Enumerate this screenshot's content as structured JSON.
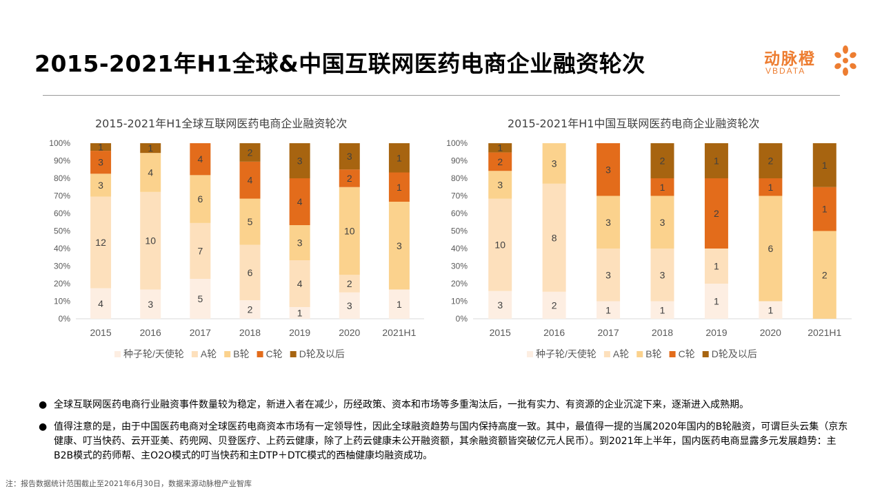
{
  "header": {
    "title": "2015-2021年H1全球&中国互联网医药电商企业融资轮次",
    "logo_cn": "动脉橙",
    "logo_en": "VBDATA"
  },
  "colors": {
    "seed": "#fdeee2",
    "a": "#fde0bc",
    "b": "#fbd28d",
    "c": "#e36c1b",
    "d": "#a76410",
    "accent": "#ed7d31"
  },
  "chart_data": [
    {
      "type": "bar",
      "stacked": "percent",
      "title": "2015-2021年H1全球互联网医药电商企业融资轮次",
      "categories": [
        "2015",
        "2016",
        "2017",
        "2018",
        "2019",
        "2020",
        "2021H1"
      ],
      "yticks": [
        "0%",
        "10%",
        "20%",
        "30%",
        "40%",
        "50%",
        "60%",
        "70%",
        "80%",
        "90%",
        "100%"
      ],
      "ylim": [
        0,
        100
      ],
      "legend_position": "bottom",
      "series": [
        {
          "name": "种子轮/天使轮",
          "color_key": "seed",
          "values": [
            4,
            3,
            5,
            2,
            1,
            3,
            1
          ]
        },
        {
          "name": "A轮",
          "color_key": "a",
          "values": [
            12,
            10,
            7,
            6,
            4,
            2,
            0
          ]
        },
        {
          "name": "B轮",
          "color_key": "b",
          "values": [
            3,
            4,
            6,
            5,
            3,
            10,
            3
          ]
        },
        {
          "name": "C轮",
          "color_key": "c",
          "values": [
            3,
            0,
            4,
            4,
            4,
            2,
            1
          ]
        },
        {
          "name": "D轮及以后",
          "color_key": "d",
          "values": [
            1,
            1,
            0,
            2,
            3,
            3,
            1
          ]
        }
      ]
    },
    {
      "type": "bar",
      "stacked": "percent",
      "title": "2015-2021年H1中国互联网医药电商企业融资轮次",
      "categories": [
        "2015",
        "2016",
        "2017",
        "2018",
        "2019",
        "2020",
        "2021H1"
      ],
      "yticks": [
        "0%",
        "10%",
        "20%",
        "30%",
        "40%",
        "50%",
        "60%",
        "70%",
        "80%",
        "90%",
        "100%"
      ],
      "ylim": [
        0,
        100
      ],
      "legend_position": "bottom",
      "series": [
        {
          "name": "种子轮/天使轮",
          "color_key": "seed",
          "values": [
            3,
            2,
            1,
            1,
            1,
            1,
            0
          ]
        },
        {
          "name": "A轮",
          "color_key": "a",
          "values": [
            10,
            8,
            3,
            3,
            1,
            0,
            0
          ]
        },
        {
          "name": "B轮",
          "color_key": "b",
          "values": [
            3,
            3,
            3,
            3,
            0,
            6,
            2
          ]
        },
        {
          "name": "C轮",
          "color_key": "c",
          "values": [
            2,
            0,
            3,
            1,
            2,
            1,
            1
          ]
        },
        {
          "name": "D轮及以后",
          "color_key": "d",
          "values": [
            1,
            0,
            0,
            2,
            1,
            2,
            1
          ]
        }
      ]
    }
  ],
  "notes": {
    "bullet": "●",
    "items": [
      "全球互联网医药电商行业融资事件数量较为稳定，新进入者在减少，历经政策、资本和市场等多重淘汰后，一批有实力、有资源的企业沉淀下来，逐渐进入成熟期。",
      "值得注意的是，由于中国医药电商对全球医药电商资本市场有一定领导性，因此全球融资趋势与国内保持高度一致。其中，最值得一提的当属2020年国内的B轮融资，可谓巨头云集（京东健康、叮当快药、云开亚美、药兜网、贝登医疗、上药云健康，除了上药云健康未公开融资额，其余融资额皆突破亿元人民币）。到2021年上半年，国内医药电商显露多元发展趋势：主B2B模式的药师帮、主O2O模式的叮当快药和主DTP＋DTC模式的西柚健康均融资成功。"
    ]
  },
  "footnote": "注：报告数据统计范围截止至2021年6月30日，数据来源动脉橙产业智库"
}
